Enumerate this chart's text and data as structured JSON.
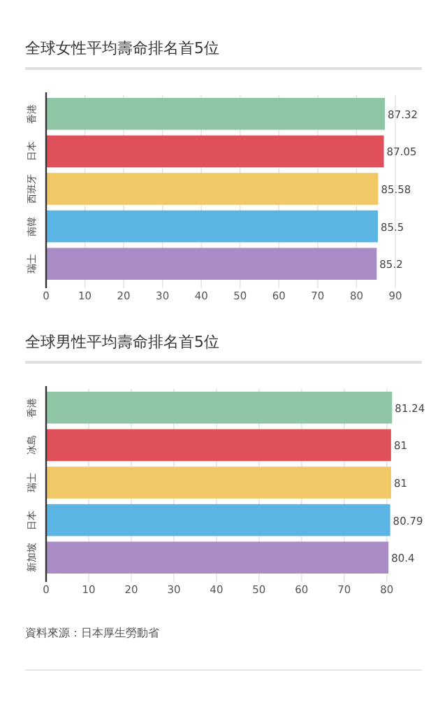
{
  "chart_data": [
    {
      "type": "bar",
      "orientation": "horizontal",
      "title": "全球女性平均壽命排名首5位",
      "categories": [
        "香港",
        "日本",
        "西班牙",
        "南韓",
        "瑞士"
      ],
      "values": [
        87.32,
        87.05,
        85.58,
        85.5,
        85.2
      ],
      "colors": [
        "#8ec6a6",
        "#e0505a",
        "#f0c865",
        "#5ab4e4",
        "#a98cc6"
      ],
      "xlim": [
        0,
        90
      ],
      "xticks": [
        0,
        10,
        20,
        30,
        40,
        50,
        60,
        70,
        80,
        90
      ],
      "grid": "x",
      "data_labels": true
    },
    {
      "type": "bar",
      "orientation": "horizontal",
      "title": "全球男性平均壽命排名首5位",
      "categories": [
        "香港",
        "冰島",
        "瑞士",
        "日本",
        "新加坡"
      ],
      "values": [
        81.24,
        81,
        81,
        80.79,
        80.4
      ],
      "colors": [
        "#8ec6a6",
        "#e0505a",
        "#f0c865",
        "#5ab4e4",
        "#a98cc6"
      ],
      "xlim": [
        0,
        82
      ],
      "xticks": [
        0,
        10,
        20,
        30,
        40,
        50,
        60,
        70,
        80
      ],
      "grid": "x",
      "data_labels": true,
      "annotations": [
        "資料來源：日本厚生勞動省"
      ]
    }
  ]
}
